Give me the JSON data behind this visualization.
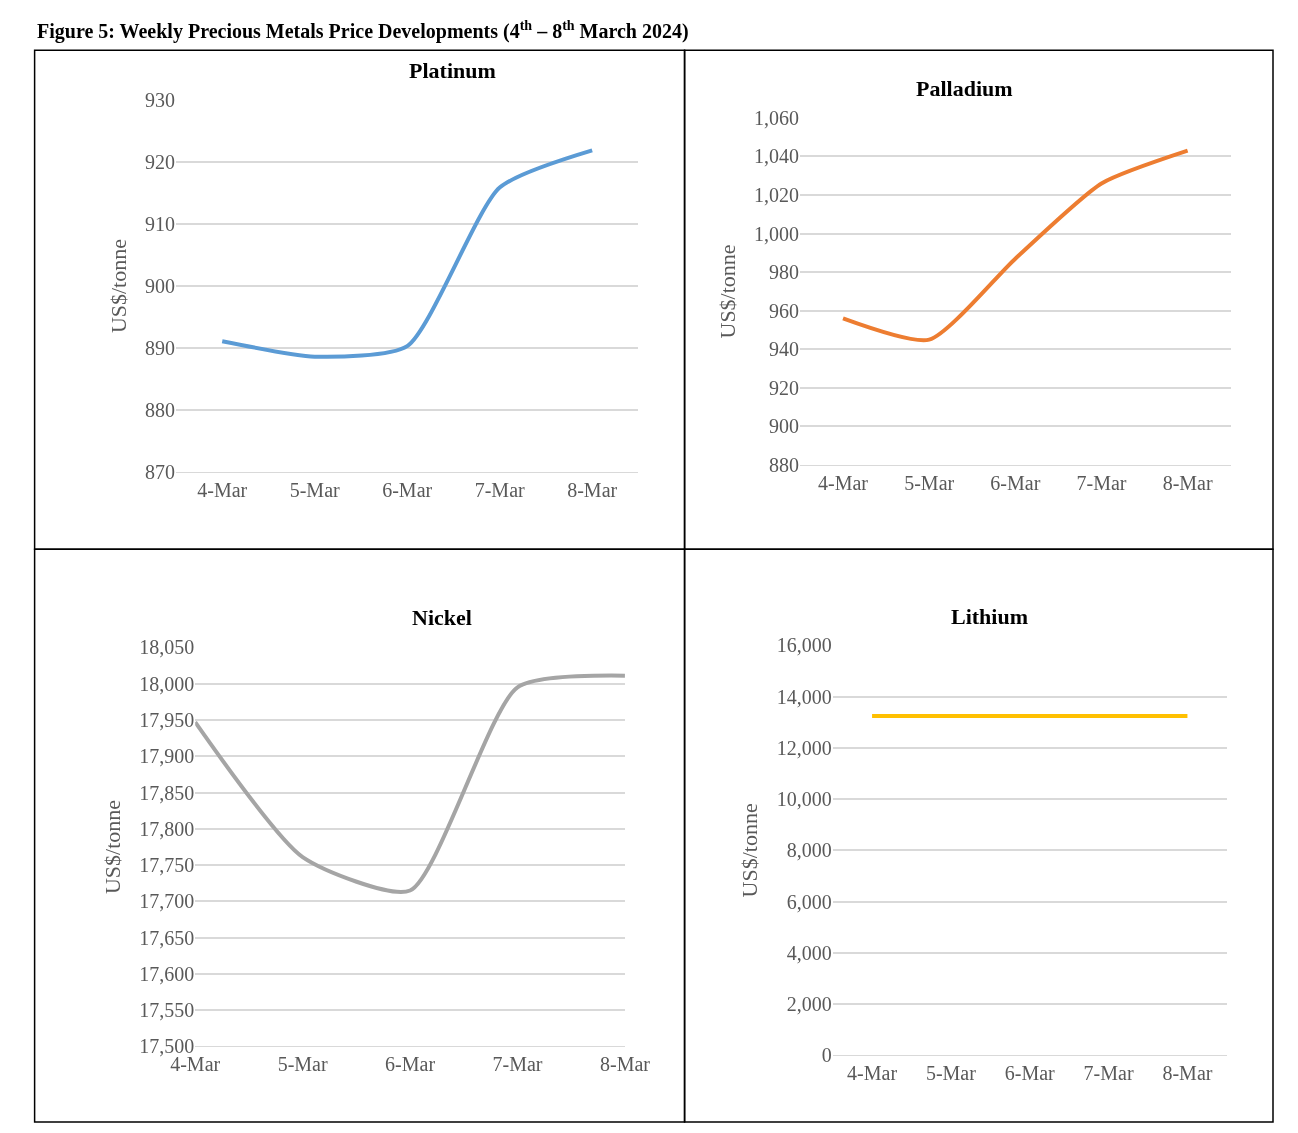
{
  "chart_data": [
    {
      "type": "line",
      "title": "Platinum",
      "ylabel": "US$/tonne",
      "categories": [
        "4-Mar",
        "5-Mar",
        "6-Mar",
        "7-Mar",
        "8-Mar"
      ],
      "series": [
        {
          "color": "#5b9bd5",
          "values": [
            891.1,
            888.6,
            890.3,
            915.9,
            921.9
          ]
        }
      ],
      "ylim": [
        870,
        930
      ],
      "yticks": [
        870,
        880,
        890,
        900,
        910,
        920,
        930
      ],
      "grid": "y",
      "legend": false
    },
    {
      "type": "line",
      "title": "Palladium",
      "ylabel": "US$/tonne",
      "categories": [
        "4-Mar",
        "5-Mar",
        "6-Mar",
        "7-Mar",
        "8-Mar"
      ],
      "series": [
        {
          "color": "#ed7d31",
          "values": [
            956,
            945,
            987,
            1026,
            1043
          ]
        }
      ],
      "ylim": [
        880,
        1060
      ],
      "yticks": [
        {
          "value": 880,
          "label": "880"
        },
        {
          "value": 900,
          "label": "900"
        },
        {
          "value": 920,
          "label": "920"
        },
        {
          "value": 940,
          "label": "940"
        },
        {
          "value": 960,
          "label": "960"
        },
        {
          "value": 980,
          "label": "980"
        },
        {
          "value": 1000,
          "label": "1,000"
        },
        {
          "value": 1020,
          "label": "1,020"
        },
        {
          "value": 1040,
          "label": "1,040"
        },
        {
          "value": 1060,
          "label": "1,060"
        }
      ],
      "grid": "y",
      "legend": false
    },
    {
      "type": "line",
      "title": "Nickel",
      "ylabel": "US$/tonne",
      "categories": [
        "4-Mar",
        "5-Mar",
        "6-Mar",
        "7-Mar",
        "8-Mar"
      ],
      "series": [
        {
          "color": "#a5a5a5",
          "values": [
            17947,
            17761,
            17715,
            17995,
            18011
          ]
        }
      ],
      "ylim": [
        17500,
        18050
      ],
      "yticks": [
        {
          "value": 17500,
          "label": "17,500"
        },
        {
          "value": 17550,
          "label": "17,550"
        },
        {
          "value": 17600,
          "label": "17,600"
        },
        {
          "value": 17650,
          "label": "17,650"
        },
        {
          "value": 17700,
          "label": "17,700"
        },
        {
          "value": 17750,
          "label": "17,750"
        },
        {
          "value": 17800,
          "label": "17,800"
        },
        {
          "value": 17850,
          "label": "17,850"
        },
        {
          "value": 17900,
          "label": "17,900"
        },
        {
          "value": 17950,
          "label": "17,950"
        },
        {
          "value": 18000,
          "label": "18,000"
        },
        {
          "value": 18050,
          "label": "18,050"
        }
      ],
      "grid": "y",
      "legend": false,
      "annotations": [
        "Figure 5: Weekly Precious Metals Price Developments (4$^{th}$ – 8$^{th}$ March 2024)"
      ]
    },
    {
      "type": "line",
      "title": "Lithium",
      "ylabel": "US$/tonne",
      "categories": [
        "4-Mar",
        "5-Mar",
        "6-Mar",
        "7-Mar",
        "8-Mar"
      ],
      "series": [
        {
          "color": "#ffc000",
          "values": [
            13250,
            13250,
            13250,
            13250,
            13250
          ]
        }
      ],
      "ylim": [
        0,
        16000
      ],
      "yticks": [
        0,
        {
          "value": 2000,
          "label": "2,000"
        },
        {
          "value": 4000,
          "label": "4,000"
        },
        {
          "value": 6000,
          "label": "6,000"
        },
        {
          "value": 8000,
          "label": "8,000"
        },
        {
          "value": 10000,
          "label": "10,000"
        },
        {
          "value": 12000,
          "label": "12,000"
        },
        {
          "value": 14000,
          "label": "14,000"
        },
        {
          "value": 16000,
          "label": "16,000"
        }
      ],
      "grid": "y",
      "legend": false
    }
  ]
}
